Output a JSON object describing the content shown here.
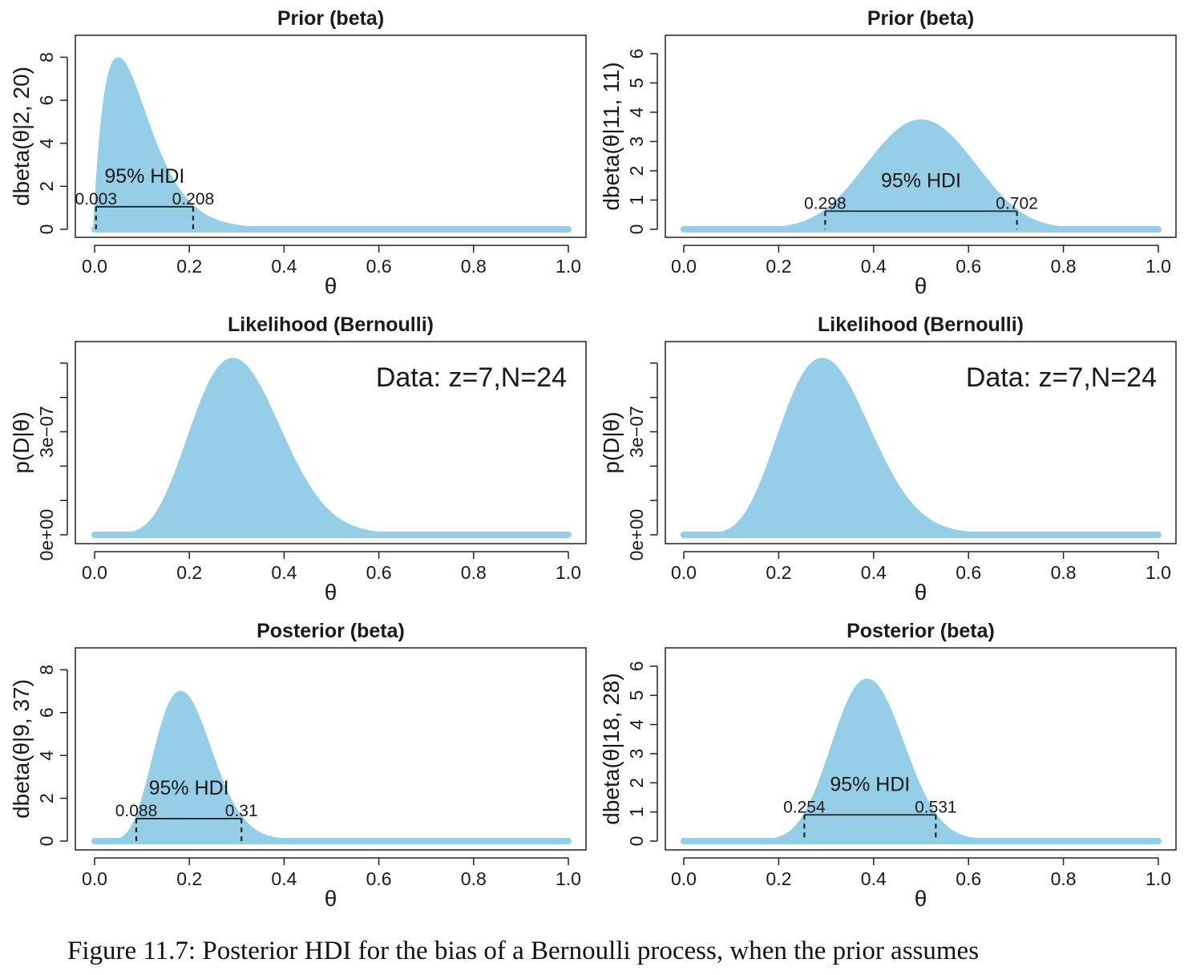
{
  "caption": "Figure 11.7: Posterior HDI for the bias of a Bernoulli process, when the prior assumes",
  "colors": {
    "fill": "#96CDE7",
    "frame": "#222222",
    "text": "#1a1a1a"
  },
  "chart_data": [
    {
      "type": "area",
      "title": "Prior (beta)",
      "xlabel": "θ",
      "ylabel": "dbeta(θ|2, 20)",
      "dist": {
        "kind": "beta",
        "a": 2,
        "b": 20
      },
      "xlim": [
        0,
        1
      ],
      "ylim": [
        0,
        8.5
      ],
      "xticks": [
        0,
        0.2,
        0.4,
        0.6,
        0.8,
        1.0
      ],
      "xtick_labels": [
        "0.0",
        "0.2",
        "0.4",
        "0.6",
        "0.8",
        "1.0"
      ],
      "yticks": [
        0,
        2,
        4,
        6,
        8
      ],
      "ytick_labels": [
        "0",
        "2",
        "4",
        "6",
        "8"
      ],
      "hdi": {
        "label": "95% HDI",
        "low": 0.003,
        "high": 0.208,
        "low_label": "0.003",
        "high_label": "0.208",
        "height": 1.05
      }
    },
    {
      "type": "area",
      "title": "Prior (beta)",
      "xlabel": "θ",
      "ylabel": "dbeta(θ|11, 11)",
      "dist": {
        "kind": "beta",
        "a": 11,
        "b": 11
      },
      "xlim": [
        0,
        1
      ],
      "ylim": [
        0,
        6.3
      ],
      "xticks": [
        0,
        0.2,
        0.4,
        0.6,
        0.8,
        1.0
      ],
      "xtick_labels": [
        "0.0",
        "0.2",
        "0.4",
        "0.6",
        "0.8",
        "1.0"
      ],
      "yticks": [
        0,
        1,
        2,
        3,
        4,
        5,
        6
      ],
      "ytick_labels": [
        "0",
        "1",
        "2",
        "3",
        "4",
        "5",
        "6"
      ],
      "hdi": {
        "label": "95% HDI",
        "low": 0.298,
        "high": 0.702,
        "low_label": "0.298",
        "high_label": "0.702",
        "height": 0.62
      }
    },
    {
      "type": "area",
      "title": "Likelihood (Bernoulli)",
      "xlabel": "θ",
      "ylabel": "p(D|θ)",
      "dist": {
        "kind": "bernoulli",
        "z": 7,
        "N": 24
      },
      "xlim": [
        0,
        1
      ],
      "ylim": [
        0,
        5.3e-07
      ],
      "xticks": [
        0,
        0.2,
        0.4,
        0.6,
        0.8,
        1.0
      ],
      "xtick_labels": [
        "0.0",
        "0.2",
        "0.4",
        "0.6",
        "0.8",
        "1.0"
      ],
      "yticks": [
        0,
        1e-07,
        2e-07,
        3e-07,
        4e-07,
        5e-07
      ],
      "ytick_labels": [
        "0e+00",
        "",
        "",
        "3e−07",
        "",
        ""
      ],
      "annotation": "Data: z=7,N=24"
    },
    {
      "type": "area",
      "title": "Likelihood (Bernoulli)",
      "xlabel": "θ",
      "ylabel": "p(D|θ)",
      "dist": {
        "kind": "bernoulli",
        "z": 7,
        "N": 24
      },
      "xlim": [
        0,
        1
      ],
      "ylim": [
        0,
        5.3e-07
      ],
      "xticks": [
        0,
        0.2,
        0.4,
        0.6,
        0.8,
        1.0
      ],
      "xtick_labels": [
        "0.0",
        "0.2",
        "0.4",
        "0.6",
        "0.8",
        "1.0"
      ],
      "yticks": [
        0,
        1e-07,
        2e-07,
        3e-07,
        4e-07,
        5e-07
      ],
      "ytick_labels": [
        "0e+00",
        "",
        "",
        "3e−07",
        "",
        ""
      ],
      "annotation": "Data: z=7,N=24"
    },
    {
      "type": "area",
      "title": "Posterior (beta)",
      "xlabel": "θ",
      "ylabel": "dbeta(θ|9, 37)",
      "dist": {
        "kind": "beta",
        "a": 9,
        "b": 37
      },
      "xlim": [
        0,
        1
      ],
      "ylim": [
        0,
        8.5
      ],
      "xticks": [
        0,
        0.2,
        0.4,
        0.6,
        0.8,
        1.0
      ],
      "xtick_labels": [
        "0.0",
        "0.2",
        "0.4",
        "0.6",
        "0.8",
        "1.0"
      ],
      "yticks": [
        0,
        2,
        4,
        6,
        8
      ],
      "ytick_labels": [
        "0",
        "2",
        "4",
        "6",
        "8"
      ],
      "hdi": {
        "label": "95% HDI",
        "low": 0.088,
        "high": 0.31,
        "low_label": "0.088",
        "high_label": "0.31",
        "height": 1.05
      }
    },
    {
      "type": "area",
      "title": "Posterior (beta)",
      "xlabel": "θ",
      "ylabel": "dbeta(θ|18, 28)",
      "dist": {
        "kind": "beta",
        "a": 18,
        "b": 28
      },
      "xlim": [
        0,
        1
      ],
      "ylim": [
        0,
        6.3
      ],
      "xticks": [
        0,
        0.2,
        0.4,
        0.6,
        0.8,
        1.0
      ],
      "xtick_labels": [
        "0.0",
        "0.2",
        "0.4",
        "0.6",
        "0.8",
        "1.0"
      ],
      "yticks": [
        0,
        1,
        2,
        3,
        4,
        5,
        6
      ],
      "ytick_labels": [
        "0",
        "1",
        "2",
        "3",
        "4",
        "5",
        "6"
      ],
      "hdi": {
        "label": "95% HDI",
        "low": 0.254,
        "high": 0.531,
        "low_label": "0.254",
        "high_label": "0.531",
        "height": 0.9
      }
    }
  ]
}
